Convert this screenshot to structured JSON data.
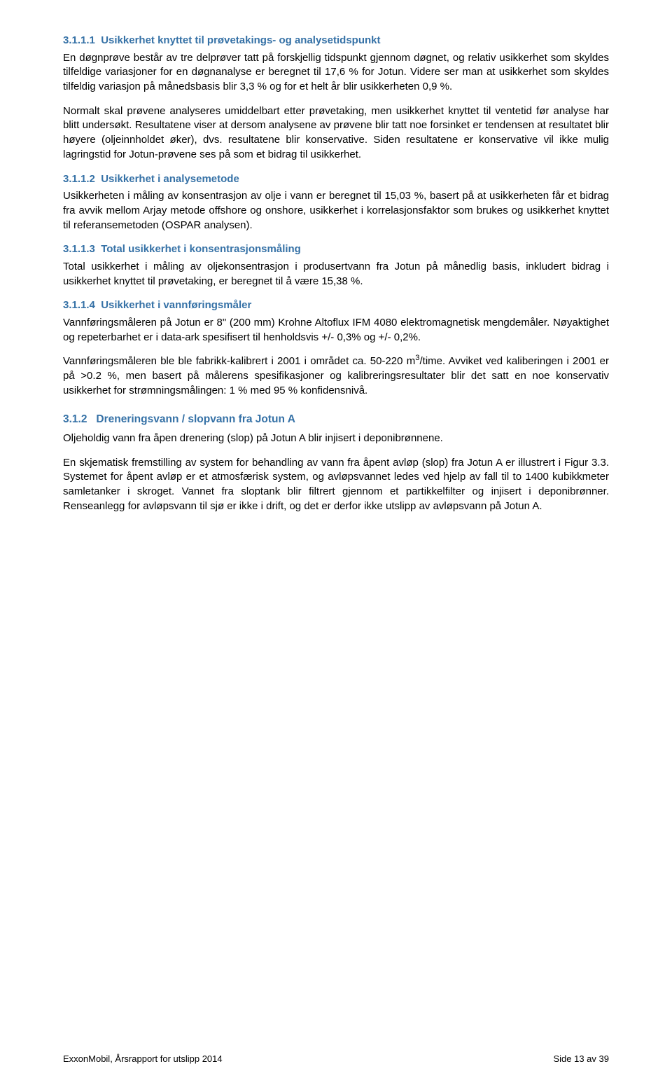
{
  "sections": {
    "s1": {
      "num": "3.1.1.1",
      "title": "Usikkerhet knyttet til prøvetakings- og analysetidspunkt",
      "p1": "En døgnprøve består av tre delprøver tatt på forskjellig tidspunkt gjennom døgnet, og relativ usikkerhet som skyldes tilfeldige variasjoner for en døgnanalyse er beregnet til 17,6 % for Jotun. Videre ser man at usikkerhet som skyldes tilfeldig variasjon på månedsbasis blir 3,3 % og for et helt år blir usikkerheten 0,9 %.",
      "p2": "Normalt skal prøvene analyseres umiddelbart etter prøvetaking, men usikkerhet knyttet til ventetid før analyse har blitt undersøkt. Resultatene viser at dersom analysene av prøvene blir tatt noe forsinket er tendensen at resultatet blir høyere (oljeinnholdet øker), dvs. resultatene blir konservative. Siden resultatene er konservative vil ikke mulig lagringstid for Jotun-prøvene ses på som et bidrag til usikkerhet."
    },
    "s2": {
      "num": "3.1.1.2",
      "title": "Usikkerhet i analysemetode",
      "p1": "Usikkerheten i måling av konsentrasjon av olje i vann er beregnet til 15,03 %, basert på at usikkerheten får et bidrag fra avvik mellom Arjay metode offshore og onshore, usikkerhet i korrelasjonsfaktor som brukes og usikkerhet knyttet til referansemetoden (OSPAR analysen)."
    },
    "s3": {
      "num": "3.1.1.3",
      "title": "Total usikkerhet i konsentrasjonsmåling",
      "p1": "Total usikkerhet i måling av oljekonsentrasjon i produsertvann fra Jotun på månedlig basis, inkludert bidrag i usikkerhet knyttet til prøvetaking, er beregnet til å være 15,38 %."
    },
    "s4": {
      "num": "3.1.1.4",
      "title": "Usikkerhet i vannføringsmåler",
      "p1": "Vannføringsmåleren på Jotun er 8\" (200 mm) Krohne Altoflux IFM 4080 elektromagnetisk mengdemåler. Nøyaktighet og repeterbarhet er i data-ark spesifisert til henholdsvis +/- 0,3% og +/- 0,2%.",
      "p2a": "Vannføringsmåleren ble ble fabrikk-kalibrert i 2001 i området ca. 50-220 m",
      "p2b": "/time. Avviket ved kaliberingen i 2001 er på >0.2 %, men basert på målerens spesifikasjoner og kalibreringsresultater blir det satt en noe konservativ usikkerhet for strømningsmålingen: 1 % med 95 % konfidensnivå.",
      "sup": "3"
    },
    "s5": {
      "num": "3.1.2",
      "title": "Dreneringsvann / slopvann fra Jotun A",
      "p1": "Oljeholdig vann fra åpen drenering (slop) på Jotun A blir injisert i deponibrønnene.",
      "p2": "En skjematisk fremstilling av system for behandling av vann fra åpent avløp (slop) fra Jotun A er illustrert i Figur 3.3. Systemet for åpent avløp er et atmosfærisk system, og avløpsvannet ledes ved hjelp av fall til to 1400 kubikkmeter samletanker i skroget. Vannet fra sloptank blir filtrert gjennom et partikkelfilter og injisert i deponibrønner. Renseanlegg for avløpsvann til sjø er ikke i drift, og det er derfor ikke utslipp av avløpsvann på Jotun A."
    }
  },
  "footer": {
    "left": "ExxonMobil, Årsrapport for utslipp 2014",
    "right": "Side 13 av 39"
  },
  "colors": {
    "heading": "#3571a6",
    "body_text": "#000000",
    "background": "#ffffff"
  }
}
